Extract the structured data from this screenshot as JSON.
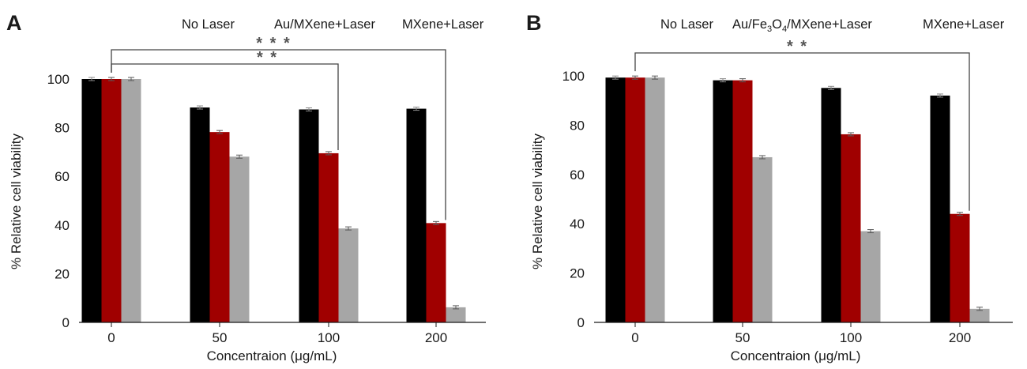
{
  "chart_data": [
    {
      "type": "bar",
      "panel": "A",
      "legend": [
        "No Laser",
        "Au/MXene+Laser",
        "MXene+Laser"
      ],
      "xlabel": "Concentraion (μg/mL)",
      "ylabel": "% Relative cell viability",
      "categories": [
        "0",
        "50",
        "100",
        "200"
      ],
      "yticks": [
        "0",
        "20",
        "40",
        "60",
        "80",
        "100"
      ],
      "ylim": [
        0,
        100
      ],
      "series": [
        {
          "name": "No Laser",
          "color": "#000000",
          "values": [
            100,
            88.3,
            87.5,
            87.8
          ]
        },
        {
          "name": "Au/MXene+Laser",
          "color": "#a00000",
          "values": [
            100,
            78.2,
            69.5,
            40.8
          ]
        },
        {
          "name": "MXene+Laser",
          "color": "#a6a6a6",
          "values": [
            100,
            68.1,
            38.6,
            6.2
          ]
        }
      ],
      "significance": [
        {
          "label": "* *",
          "from_category": 0,
          "to_category": 2
        },
        {
          "label": "* * *",
          "from_category": 0,
          "to_category": 3
        }
      ],
      "grid": false
    },
    {
      "type": "bar",
      "panel": "B",
      "legend_parts": {
        "no_laser": "No Laser",
        "au_fe_a": "Au/Fe",
        "sub_3": "3",
        "o": "O",
        "sub_4": "4",
        "mxene_laser_suffix": "/MXene+Laser",
        "mxene_laser": "MXene+Laser"
      },
      "xlabel": "Concentraion (μg/mL)",
      "ylabel": "% Relative cell viability",
      "categories": [
        "0",
        "50",
        "100",
        "200"
      ],
      "yticks": [
        "0",
        "20",
        "40",
        "60",
        "80",
        "100"
      ],
      "ylim": [
        0,
        100
      ],
      "series": [
        {
          "name": "No Laser",
          "color": "#000000",
          "values": [
            99.3,
            98.2,
            95.1,
            92
          ]
        },
        {
          "name": "Au/Fe3O4/MXene+Laser",
          "color": "#a00000",
          "values": [
            99.3,
            98.2,
            76.3,
            44
          ]
        },
        {
          "name": "MXene+Laser",
          "color": "#a6a6a6",
          "values": [
            99.3,
            67,
            37,
            5.5
          ]
        }
      ],
      "significance": [
        {
          "label": "* *",
          "from_category": 0,
          "to_category": 3
        }
      ],
      "grid": false
    }
  ]
}
